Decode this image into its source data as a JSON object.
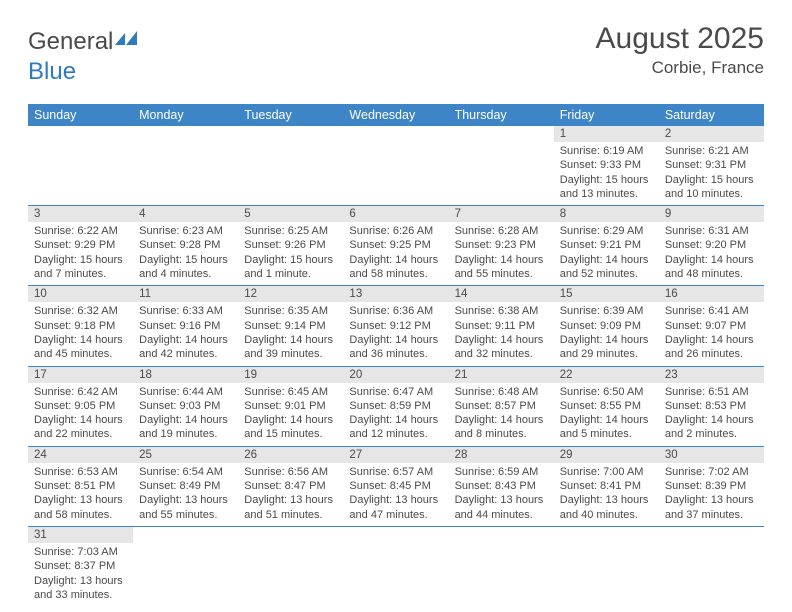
{
  "logo": {
    "text_dark": "General",
    "text_blue": "Blue"
  },
  "title": "August 2025",
  "location": "Corbie, France",
  "colors": {
    "header_bg": "#3d85c6",
    "header_text": "#ffffff",
    "daynum_bg": "#e6e6e6",
    "border": "#3d85c6",
    "text": "#4a4a4a",
    "logo_blue": "#2f7bbf"
  },
  "day_headers": [
    "Sunday",
    "Monday",
    "Tuesday",
    "Wednesday",
    "Thursday",
    "Friday",
    "Saturday"
  ],
  "weeks": [
    [
      {
        "blank": true
      },
      {
        "blank": true
      },
      {
        "blank": true
      },
      {
        "blank": true
      },
      {
        "blank": true
      },
      {
        "num": "1",
        "sunrise": "Sunrise: 6:19 AM",
        "sunset": "Sunset: 9:33 PM",
        "day1": "Daylight: 15 hours",
        "day2": "and 13 minutes."
      },
      {
        "num": "2",
        "sunrise": "Sunrise: 6:21 AM",
        "sunset": "Sunset: 9:31 PM",
        "day1": "Daylight: 15 hours",
        "day2": "and 10 minutes."
      }
    ],
    [
      {
        "num": "3",
        "sunrise": "Sunrise: 6:22 AM",
        "sunset": "Sunset: 9:29 PM",
        "day1": "Daylight: 15 hours",
        "day2": "and 7 minutes."
      },
      {
        "num": "4",
        "sunrise": "Sunrise: 6:23 AM",
        "sunset": "Sunset: 9:28 PM",
        "day1": "Daylight: 15 hours",
        "day2": "and 4 minutes."
      },
      {
        "num": "5",
        "sunrise": "Sunrise: 6:25 AM",
        "sunset": "Sunset: 9:26 PM",
        "day1": "Daylight: 15 hours",
        "day2": "and 1 minute."
      },
      {
        "num": "6",
        "sunrise": "Sunrise: 6:26 AM",
        "sunset": "Sunset: 9:25 PM",
        "day1": "Daylight: 14 hours",
        "day2": "and 58 minutes."
      },
      {
        "num": "7",
        "sunrise": "Sunrise: 6:28 AM",
        "sunset": "Sunset: 9:23 PM",
        "day1": "Daylight: 14 hours",
        "day2": "and 55 minutes."
      },
      {
        "num": "8",
        "sunrise": "Sunrise: 6:29 AM",
        "sunset": "Sunset: 9:21 PM",
        "day1": "Daylight: 14 hours",
        "day2": "and 52 minutes."
      },
      {
        "num": "9",
        "sunrise": "Sunrise: 6:31 AM",
        "sunset": "Sunset: 9:20 PM",
        "day1": "Daylight: 14 hours",
        "day2": "and 48 minutes."
      }
    ],
    [
      {
        "num": "10",
        "sunrise": "Sunrise: 6:32 AM",
        "sunset": "Sunset: 9:18 PM",
        "day1": "Daylight: 14 hours",
        "day2": "and 45 minutes."
      },
      {
        "num": "11",
        "sunrise": "Sunrise: 6:33 AM",
        "sunset": "Sunset: 9:16 PM",
        "day1": "Daylight: 14 hours",
        "day2": "and 42 minutes."
      },
      {
        "num": "12",
        "sunrise": "Sunrise: 6:35 AM",
        "sunset": "Sunset: 9:14 PM",
        "day1": "Daylight: 14 hours",
        "day2": "and 39 minutes."
      },
      {
        "num": "13",
        "sunrise": "Sunrise: 6:36 AM",
        "sunset": "Sunset: 9:12 PM",
        "day1": "Daylight: 14 hours",
        "day2": "and 36 minutes."
      },
      {
        "num": "14",
        "sunrise": "Sunrise: 6:38 AM",
        "sunset": "Sunset: 9:11 PM",
        "day1": "Daylight: 14 hours",
        "day2": "and 32 minutes."
      },
      {
        "num": "15",
        "sunrise": "Sunrise: 6:39 AM",
        "sunset": "Sunset: 9:09 PM",
        "day1": "Daylight: 14 hours",
        "day2": "and 29 minutes."
      },
      {
        "num": "16",
        "sunrise": "Sunrise: 6:41 AM",
        "sunset": "Sunset: 9:07 PM",
        "day1": "Daylight: 14 hours",
        "day2": "and 26 minutes."
      }
    ],
    [
      {
        "num": "17",
        "sunrise": "Sunrise: 6:42 AM",
        "sunset": "Sunset: 9:05 PM",
        "day1": "Daylight: 14 hours",
        "day2": "and 22 minutes."
      },
      {
        "num": "18",
        "sunrise": "Sunrise: 6:44 AM",
        "sunset": "Sunset: 9:03 PM",
        "day1": "Daylight: 14 hours",
        "day2": "and 19 minutes."
      },
      {
        "num": "19",
        "sunrise": "Sunrise: 6:45 AM",
        "sunset": "Sunset: 9:01 PM",
        "day1": "Daylight: 14 hours",
        "day2": "and 15 minutes."
      },
      {
        "num": "20",
        "sunrise": "Sunrise: 6:47 AM",
        "sunset": "Sunset: 8:59 PM",
        "day1": "Daylight: 14 hours",
        "day2": "and 12 minutes."
      },
      {
        "num": "21",
        "sunrise": "Sunrise: 6:48 AM",
        "sunset": "Sunset: 8:57 PM",
        "day1": "Daylight: 14 hours",
        "day2": "and 8 minutes."
      },
      {
        "num": "22",
        "sunrise": "Sunrise: 6:50 AM",
        "sunset": "Sunset: 8:55 PM",
        "day1": "Daylight: 14 hours",
        "day2": "and 5 minutes."
      },
      {
        "num": "23",
        "sunrise": "Sunrise: 6:51 AM",
        "sunset": "Sunset: 8:53 PM",
        "day1": "Daylight: 14 hours",
        "day2": "and 2 minutes."
      }
    ],
    [
      {
        "num": "24",
        "sunrise": "Sunrise: 6:53 AM",
        "sunset": "Sunset: 8:51 PM",
        "day1": "Daylight: 13 hours",
        "day2": "and 58 minutes."
      },
      {
        "num": "25",
        "sunrise": "Sunrise: 6:54 AM",
        "sunset": "Sunset: 8:49 PM",
        "day1": "Daylight: 13 hours",
        "day2": "and 55 minutes."
      },
      {
        "num": "26",
        "sunrise": "Sunrise: 6:56 AM",
        "sunset": "Sunset: 8:47 PM",
        "day1": "Daylight: 13 hours",
        "day2": "and 51 minutes."
      },
      {
        "num": "27",
        "sunrise": "Sunrise: 6:57 AM",
        "sunset": "Sunset: 8:45 PM",
        "day1": "Daylight: 13 hours",
        "day2": "and 47 minutes."
      },
      {
        "num": "28",
        "sunrise": "Sunrise: 6:59 AM",
        "sunset": "Sunset: 8:43 PM",
        "day1": "Daylight: 13 hours",
        "day2": "and 44 minutes."
      },
      {
        "num": "29",
        "sunrise": "Sunrise: 7:00 AM",
        "sunset": "Sunset: 8:41 PM",
        "day1": "Daylight: 13 hours",
        "day2": "and 40 minutes."
      },
      {
        "num": "30",
        "sunrise": "Sunrise: 7:02 AM",
        "sunset": "Sunset: 8:39 PM",
        "day1": "Daylight: 13 hours",
        "day2": "and 37 minutes."
      }
    ],
    [
      {
        "num": "31",
        "sunrise": "Sunrise: 7:03 AM",
        "sunset": "Sunset: 8:37 PM",
        "day1": "Daylight: 13 hours",
        "day2": "and 33 minutes."
      },
      {
        "blank": true
      },
      {
        "blank": true
      },
      {
        "blank": true
      },
      {
        "blank": true
      },
      {
        "blank": true
      },
      {
        "blank": true
      }
    ]
  ]
}
